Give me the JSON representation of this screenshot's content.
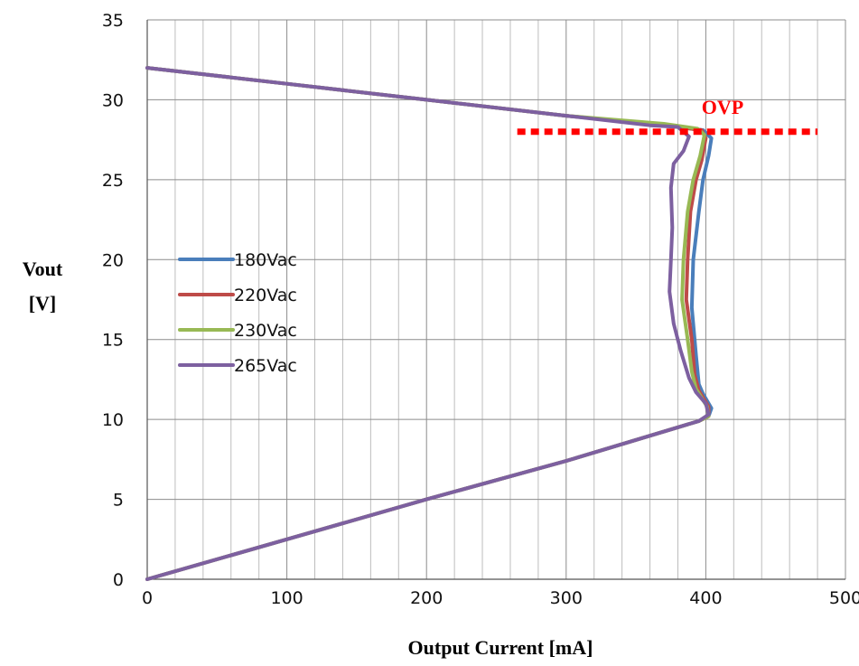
{
  "chart_data": {
    "type": "line",
    "title": "",
    "xlabel": "Output Current [mA]",
    "ylabel": "Vout [V]",
    "ylabel_lines": [
      "Vout",
      "[V]"
    ],
    "xlim": [
      0,
      500
    ],
    "ylim": [
      0,
      35
    ],
    "xticks": [
      0,
      100,
      200,
      300,
      400,
      500
    ],
    "yticks": [
      0,
      5,
      10,
      15,
      20,
      25,
      30,
      35
    ],
    "x_minor_step": 20,
    "y_minor_step": 5,
    "grid": true,
    "legend_position": "left-center",
    "annotation": {
      "label": "OVP",
      "y": 28,
      "x_start": 265,
      "x_end": 480,
      "color": "#ff0000",
      "style": "dotted"
    },
    "series": [
      {
        "name": "180Vac",
        "color": "#4a7ebb",
        "points": [
          [
            0,
            32
          ],
          [
            100,
            31
          ],
          [
            200,
            30
          ],
          [
            300,
            29
          ],
          [
            370,
            28.4
          ],
          [
            398,
            28.1
          ],
          [
            404,
            27.6
          ],
          [
            402,
            26.5
          ],
          [
            398,
            25
          ],
          [
            395,
            23
          ],
          [
            391,
            20
          ],
          [
            390,
            17
          ],
          [
            393,
            14
          ],
          [
            395,
            12.2
          ],
          [
            398,
            11.6
          ],
          [
            404,
            10.7
          ],
          [
            402,
            10.2
          ],
          [
            395,
            9.9
          ],
          [
            300,
            7.4
          ],
          [
            200,
            5
          ],
          [
            100,
            2.5
          ],
          [
            0,
            0
          ]
        ]
      },
      {
        "name": "220Vac",
        "color": "#be4b48",
        "points": [
          [
            0,
            32
          ],
          [
            100,
            31
          ],
          [
            200,
            30
          ],
          [
            300,
            29
          ],
          [
            370,
            28.4
          ],
          [
            397,
            28.1
          ],
          [
            400,
            27.6
          ],
          [
            397,
            26.2
          ],
          [
            393,
            25
          ],
          [
            389,
            23
          ],
          [
            387,
            20
          ],
          [
            386,
            17.5
          ],
          [
            390,
            15
          ],
          [
            392,
            12.8
          ],
          [
            395,
            11.8
          ],
          [
            402,
            10.8
          ],
          [
            402,
            10.2
          ],
          [
            395,
            9.9
          ],
          [
            300,
            7.4
          ],
          [
            200,
            5
          ],
          [
            100,
            2.5
          ],
          [
            0,
            0
          ]
        ]
      },
      {
        "name": "230Vac",
        "color": "#98b954",
        "points": [
          [
            0,
            32
          ],
          [
            100,
            31
          ],
          [
            200,
            30
          ],
          [
            300,
            29
          ],
          [
            370,
            28.5
          ],
          [
            394,
            28.2
          ],
          [
            399,
            27.8
          ],
          [
            396,
            26.5
          ],
          [
            391,
            25
          ],
          [
            387,
            23
          ],
          [
            384,
            20
          ],
          [
            383,
            17.5
          ],
          [
            387,
            15
          ],
          [
            390,
            13
          ],
          [
            393,
            11.9
          ],
          [
            401,
            10.8
          ],
          [
            402,
            10.2
          ],
          [
            395,
            9.9
          ],
          [
            300,
            7.4
          ],
          [
            200,
            5
          ],
          [
            100,
            2.5
          ],
          [
            0,
            0
          ]
        ]
      },
      {
        "name": "265Vac",
        "color": "#7d60a0",
        "points": [
          [
            0,
            32
          ],
          [
            100,
            31
          ],
          [
            200,
            30
          ],
          [
            300,
            29
          ],
          [
            360,
            28.4
          ],
          [
            380,
            28.3
          ],
          [
            388,
            27.7
          ],
          [
            384,
            26.8
          ],
          [
            377,
            26
          ],
          [
            375,
            24.5
          ],
          [
            376,
            22
          ],
          [
            375,
            20
          ],
          [
            374,
            18
          ],
          [
            377,
            16
          ],
          [
            382,
            14.3
          ],
          [
            388,
            12.6
          ],
          [
            393,
            11.7
          ],
          [
            400,
            11
          ],
          [
            402,
            10.3
          ],
          [
            395,
            9.9
          ],
          [
            300,
            7.4
          ],
          [
            200,
            5
          ],
          [
            100,
            2.5
          ],
          [
            0,
            0
          ]
        ]
      }
    ]
  }
}
